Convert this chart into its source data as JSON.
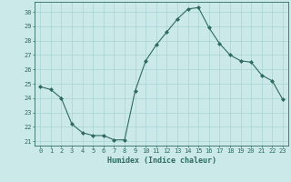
{
  "x": [
    0,
    1,
    2,
    3,
    4,
    5,
    6,
    7,
    8,
    9,
    10,
    11,
    12,
    13,
    14,
    15,
    16,
    17,
    18,
    19,
    20,
    21,
    22,
    23
  ],
  "y": [
    24.8,
    24.6,
    24.0,
    22.2,
    21.6,
    21.4,
    21.4,
    21.1,
    21.1,
    24.5,
    26.6,
    27.7,
    28.6,
    29.5,
    30.2,
    30.3,
    28.9,
    27.8,
    27.0,
    26.6,
    26.5,
    25.6,
    25.2,
    23.9
  ],
  "line_color": "#2E6B5E",
  "marker": "D",
  "marker_size": 2,
  "bg_color": "#CBE9E9",
  "grid_color": "#A8D4D4",
  "xlabel": "Humidex (Indice chaleur)",
  "xlim": [
    -0.5,
    23.5
  ],
  "ylim": [
    20.7,
    30.7
  ],
  "yticks": [
    21,
    22,
    23,
    24,
    25,
    26,
    27,
    28,
    29,
    30
  ],
  "xticks": [
    0,
    1,
    2,
    3,
    4,
    5,
    6,
    7,
    8,
    9,
    10,
    11,
    12,
    13,
    14,
    15,
    16,
    17,
    18,
    19,
    20,
    21,
    22,
    23
  ],
  "tick_color": "#2E6B5E",
  "label_color": "#2E6B5E",
  "spine_color": "#2E6B5E",
  "tick_fontsize": 5.0,
  "xlabel_fontsize": 6.0
}
